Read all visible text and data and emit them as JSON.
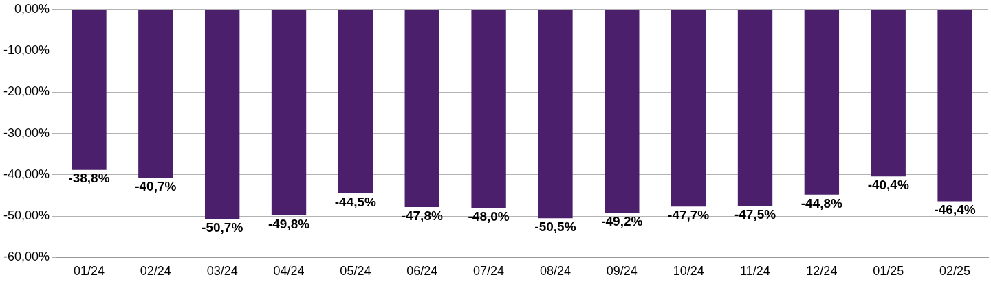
{
  "chart_data": {
    "type": "bar",
    "categories": [
      "01/24",
      "02/24",
      "03/24",
      "04/24",
      "05/24",
      "06/24",
      "07/24",
      "08/24",
      "09/24",
      "10/24",
      "11/24",
      "12/24",
      "01/25",
      "02/25"
    ],
    "values": [
      -38.8,
      -40.7,
      -50.7,
      -49.8,
      -44.5,
      -47.8,
      -48.0,
      -50.5,
      -49.2,
      -47.7,
      -47.5,
      -44.8,
      -40.4,
      -46.4
    ],
    "value_labels": [
      "-38,8%",
      "-40,7%",
      "-50,7%",
      "-49,8%",
      "-44,5%",
      "-47,8%",
      "-48,0%",
      "-50,5%",
      "-49,2%",
      "-47,7%",
      "-47,5%",
      "-44,8%",
      "-40,4%",
      "-46,4%"
    ],
    "color": "#4b1f6b",
    "ylim": [
      -60,
      0
    ],
    "yticks": [
      {
        "value": 0,
        "label": "0,00%"
      },
      {
        "value": -10,
        "label": "-10,00%"
      },
      {
        "value": -20,
        "label": "-20,00%"
      },
      {
        "value": -30,
        "label": "-30,00%"
      },
      {
        "value": -40,
        "label": "-40,00%"
      },
      {
        "value": -50,
        "label": "-50,00%"
      },
      {
        "value": -60,
        "label": "-60,00%"
      }
    ],
    "grid": "y",
    "legend": false
  }
}
